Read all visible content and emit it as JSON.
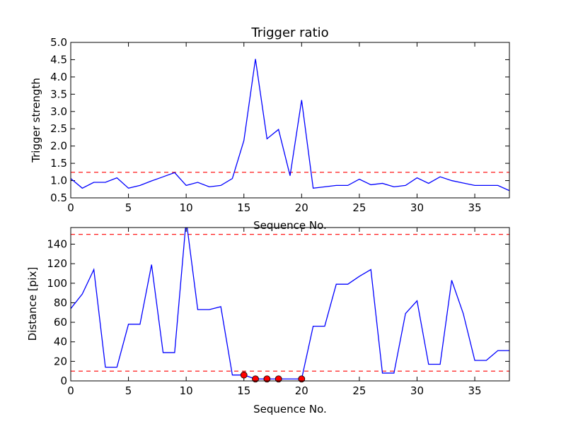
{
  "chart_data": [
    {
      "type": "line",
      "title": "Trigger ratio",
      "xlabel": "Sequence No.",
      "ylabel": "Trigger strength",
      "xlim": [
        0,
        38
      ],
      "ylim": [
        0.5,
        5.0
      ],
      "xticks": [
        0,
        5,
        10,
        15,
        20,
        25,
        30,
        35
      ],
      "yticks": [
        0.5,
        1.0,
        1.5,
        2.0,
        2.5,
        3.0,
        3.5,
        4.0,
        4.5,
        5.0
      ],
      "ytick_labels": [
        "0.5",
        "1.0",
        "1.5",
        "2.0",
        "2.5",
        "3.0",
        "3.5",
        "4.0",
        "4.5",
        "5.0"
      ],
      "series": [
        {
          "color": "#0000ff",
          "x": [
            0,
            1,
            2,
            3,
            4,
            5,
            6,
            7,
            8,
            9,
            10,
            11,
            12,
            13,
            14,
            15,
            16,
            17,
            18,
            19,
            20,
            21,
            22,
            23,
            24,
            25,
            26,
            27,
            28,
            29,
            30,
            31,
            32,
            33,
            34,
            35,
            36,
            37,
            38
          ],
          "values": [
            1.06,
            0.78,
            0.95,
            0.95,
            1.08,
            0.78,
            0.86,
            0.99,
            1.11,
            1.23,
            0.86,
            0.95,
            0.82,
            0.86,
            1.06,
            2.16,
            4.52,
            2.21,
            2.48,
            1.14,
            3.33,
            0.78,
            0.82,
            0.86,
            0.86,
            1.04,
            0.88,
            0.92,
            0.82,
            0.86,
            1.08,
            0.92,
            1.11,
            1.0,
            0.93,
            0.86,
            0.86,
            0.86,
            0.71
          ]
        }
      ],
      "hlines": [
        {
          "y": 1.24,
          "color": "#ff0000",
          "style": "dashed"
        }
      ],
      "grid": false
    },
    {
      "type": "line",
      "title": "",
      "xlabel": "Sequence No.",
      "ylabel": "Distance [pix]",
      "xlim": [
        0,
        38
      ],
      "ylim": [
        0,
        157
      ],
      "xticks": [
        0,
        5,
        10,
        15,
        20,
        25,
        30,
        35
      ],
      "yticks": [
        0,
        20,
        40,
        60,
        80,
        100,
        120,
        140
      ],
      "ytick_labels": [
        "0",
        "20",
        "40",
        "60",
        "80",
        "100",
        "120",
        "140"
      ],
      "series": [
        {
          "color": "#0000ff",
          "x": [
            0,
            1,
            2,
            3,
            4,
            5,
            6,
            7,
            8,
            9,
            10,
            11,
            12,
            13,
            14,
            15,
            16,
            17,
            18,
            19,
            20,
            21,
            22,
            23,
            24,
            25,
            26,
            27,
            28,
            29,
            30,
            31,
            32,
            33,
            34,
            35,
            36,
            37,
            38
          ],
          "values": [
            74,
            89,
            114,
            14,
            14,
            58,
            58,
            119,
            29,
            29,
            165,
            73,
            73,
            76,
            6,
            6,
            2,
            2,
            2,
            2,
            2,
            56,
            56,
            99,
            99,
            107,
            114,
            8,
            8,
            69,
            82,
            17,
            17,
            103,
            69,
            21,
            21,
            31,
            31
          ]
        }
      ],
      "markers": {
        "color": "#ff0000",
        "x": [
          15,
          16,
          17,
          18,
          20
        ],
        "y": [
          6,
          2,
          2,
          2,
          2
        ]
      },
      "hlines": [
        {
          "y": 150,
          "color": "#ff0000",
          "style": "dashed"
        },
        {
          "y": 10,
          "color": "#ff0000",
          "style": "dashed"
        }
      ],
      "grid": false
    }
  ]
}
